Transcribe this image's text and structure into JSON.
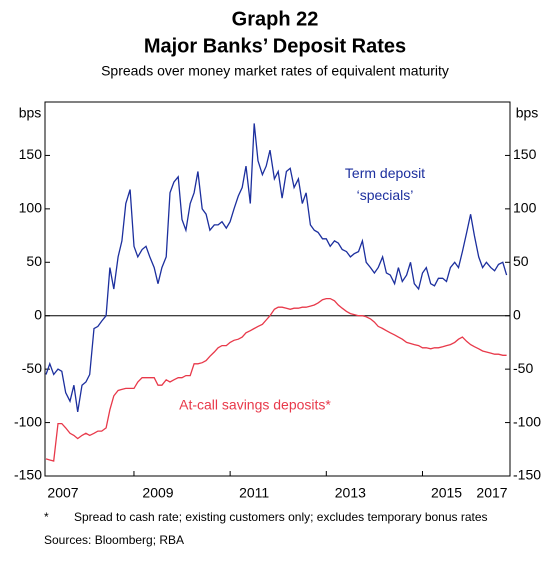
{
  "chart_data": {
    "type": "line",
    "title": "Graph 22",
    "subtitle": "Major Banks’ Deposit Rates",
    "description": "Spreads over money market rates of equivalent maturity",
    "ylabel": "bps",
    "y2label": "bps",
    "xlim": [
      2007.15,
      2016.82
    ],
    "xticks": [
      2007,
      2009,
      2011,
      2013,
      2015,
      2017
    ],
    "ylim": [
      -150,
      200
    ],
    "yticks": [
      -150,
      -100,
      -50,
      0,
      50,
      100,
      150
    ],
    "y2lim": [
      -150,
      200
    ],
    "y2ticks": [
      -150,
      -100,
      -50,
      0,
      50,
      100,
      150
    ],
    "x": [
      2007.17,
      2007.25,
      2007.33,
      2007.42,
      2007.5,
      2007.58,
      2007.67,
      2007.75,
      2007.83,
      2007.92,
      2008.0,
      2008.08,
      2008.17,
      2008.25,
      2008.33,
      2008.42,
      2008.5,
      2008.58,
      2008.67,
      2008.75,
      2008.83,
      2008.92,
      2009.0,
      2009.08,
      2009.17,
      2009.25,
      2009.33,
      2009.42,
      2009.5,
      2009.58,
      2009.67,
      2009.75,
      2009.83,
      2009.92,
      2010.0,
      2010.08,
      2010.17,
      2010.25,
      2010.33,
      2010.42,
      2010.5,
      2010.58,
      2010.67,
      2010.75,
      2010.83,
      2010.92,
      2011.0,
      2011.08,
      2011.17,
      2011.25,
      2011.33,
      2011.42,
      2011.5,
      2011.58,
      2011.67,
      2011.75,
      2011.83,
      2011.92,
      2012.0,
      2012.08,
      2012.17,
      2012.25,
      2012.33,
      2012.42,
      2012.5,
      2012.58,
      2012.67,
      2012.75,
      2012.83,
      2012.92,
      2013.0,
      2013.08,
      2013.17,
      2013.25,
      2013.33,
      2013.42,
      2013.5,
      2013.58,
      2013.67,
      2013.75,
      2013.83,
      2013.92,
      2014.0,
      2014.08,
      2014.17,
      2014.25,
      2014.33,
      2014.42,
      2014.5,
      2014.58,
      2014.67,
      2014.75,
      2014.83,
      2014.92,
      2015.0,
      2015.08,
      2015.17,
      2015.25,
      2015.33,
      2015.42,
      2015.5,
      2015.58,
      2015.67,
      2015.75,
      2015.83,
      2015.92,
      2016.0,
      2016.08,
      2016.17,
      2016.25,
      2016.33,
      2016.42,
      2016.5,
      2016.58,
      2016.67,
      2016.75
    ],
    "series": [
      {
        "name": "Term deposit ‘specials’",
        "color": "#1c2f9e",
        "values": [
          -55,
          -45,
          -55,
          -50,
          -52,
          -72,
          -80,
          -65,
          -90,
          -65,
          -62,
          -55,
          -12,
          -10,
          -5,
          0,
          45,
          25,
          55,
          70,
          105,
          118,
          65,
          55,
          62,
          65,
          55,
          45,
          30,
          45,
          55,
          115,
          125,
          130,
          90,
          80,
          105,
          115,
          135,
          100,
          95,
          80,
          85,
          85,
          88,
          82,
          88,
          100,
          112,
          120,
          140,
          105,
          180,
          145,
          132,
          140,
          155,
          128,
          135,
          110,
          135,
          138,
          120,
          128,
          105,
          115,
          85,
          80,
          78,
          72,
          72,
          65,
          70,
          68,
          62,
          60,
          55,
          58,
          60,
          70,
          50,
          45,
          40,
          45,
          55,
          40,
          38,
          30,
          45,
          32,
          38,
          50,
          30,
          25,
          40,
          45,
          30,
          28,
          35,
          35,
          32,
          45,
          50,
          45,
          60,
          78,
          95,
          75,
          55,
          45,
          50,
          45,
          42,
          48,
          50,
          38
        ]
      },
      {
        "name": "At-call savings deposits*",
        "color": "#e8394a",
        "values": [
          -134,
          -135,
          -136,
          -101,
          -101,
          -105,
          -110,
          -112,
          -115,
          -112,
          -110,
          -112,
          -110,
          -108,
          -108,
          -105,
          -88,
          -75,
          -70,
          -69,
          -68,
          -68,
          -68,
          -62,
          -58,
          -58,
          -58,
          -58,
          -65,
          -65,
          -60,
          -62,
          -60,
          -58,
          -58,
          -56,
          -56,
          -45,
          -45,
          -44,
          -42,
          -38,
          -34,
          -30,
          -28,
          -28,
          -25,
          -23,
          -22,
          -20,
          -16,
          -14,
          -12,
          -10,
          -8,
          -4,
          0,
          6,
          8,
          8,
          7,
          6,
          7,
          7,
          8,
          8,
          9,
          10,
          12,
          15,
          16,
          16,
          14,
          10,
          7,
          4,
          2,
          1,
          0,
          0,
          -1,
          -3,
          -6,
          -10,
          -12,
          -14,
          -16,
          -18,
          -20,
          -22,
          -25,
          -26,
          -27,
          -28,
          -30,
          -30,
          -31,
          -30,
          -30,
          -29,
          -28,
          -27,
          -25,
          -22,
          -20,
          -24,
          -27,
          -29,
          -31,
          -33,
          -34,
          -35,
          -36,
          -36,
          -37,
          -37
        ]
      }
    ],
    "footnote_marker": "*",
    "footnote": "Spread to cash rate; existing customers only; excludes temporary bonus rates",
    "sources": "Sources: Bloomberg; RBA"
  }
}
